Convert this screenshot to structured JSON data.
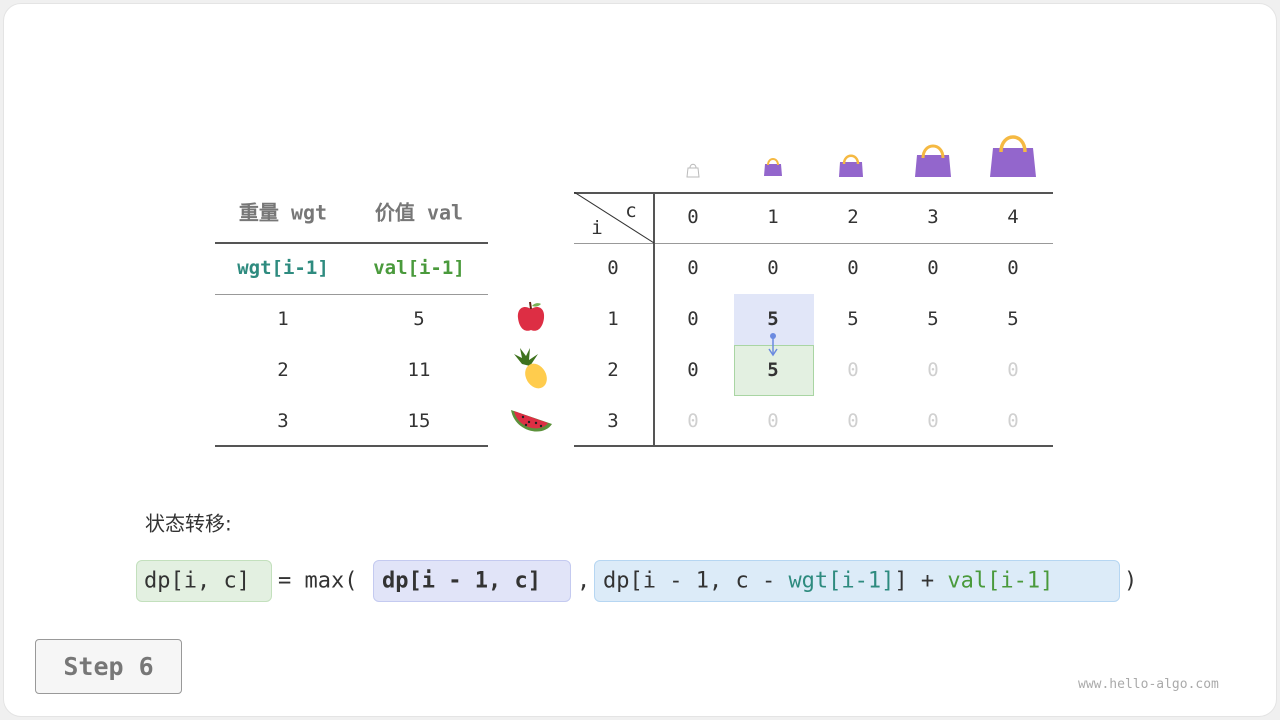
{
  "items_table": {
    "headers": [
      "重量 wgt",
      "价值 val"
    ],
    "subheaders": [
      "wgt[i-1]",
      "val[i-1]"
    ],
    "rows": [
      [
        "1",
        "5"
      ],
      [
        "2",
        "11"
      ],
      [
        "3",
        "15"
      ]
    ]
  },
  "item_icons": [
    "apple-icon",
    "pineapple-icon",
    "watermelon-icon"
  ],
  "dp_table": {
    "corner_col": "c",
    "corner_row": "i",
    "columns": [
      "0",
      "1",
      "2",
      "3",
      "4"
    ],
    "row_labels": [
      "0",
      "1",
      "2",
      "3"
    ],
    "cells": [
      [
        "0",
        "0",
        "0",
        "0",
        "0"
      ],
      [
        "0",
        "5",
        "5",
        "5",
        "5"
      ],
      [
        "0",
        "5",
        "0",
        "0",
        "0"
      ],
      [
        "0",
        "0",
        "0",
        "0",
        "0"
      ]
    ],
    "highlight_source": {
      "row": 1,
      "col": 1
    },
    "highlight_target": {
      "row": 2,
      "col": 1
    }
  },
  "capacity_icons": [
    "empty-bag-icon",
    "bag-icon",
    "bag-icon",
    "bag-icon",
    "bag-icon"
  ],
  "formula": {
    "label": "状态转移:",
    "lhs": "dp[i, c]",
    "eq": "= max(",
    "term1": "dp[i - 1, c]",
    "comma": ",",
    "term2_a": "dp[i - 1, c - ",
    "term2_wgt": "wgt[i-1]",
    "term2_b": "] + ",
    "term2_val": "val[i-1]",
    "close": ")"
  },
  "step_label": "Step 6",
  "watermark": "www.hello-algo.com",
  "colors": {
    "teal": "#2e8b7f",
    "green": "#4a9a3c",
    "blue_cell": "#e1e6f8",
    "green_cell": "#e3f0e1",
    "bag": "#9366cc",
    "handle": "#f5b942"
  }
}
